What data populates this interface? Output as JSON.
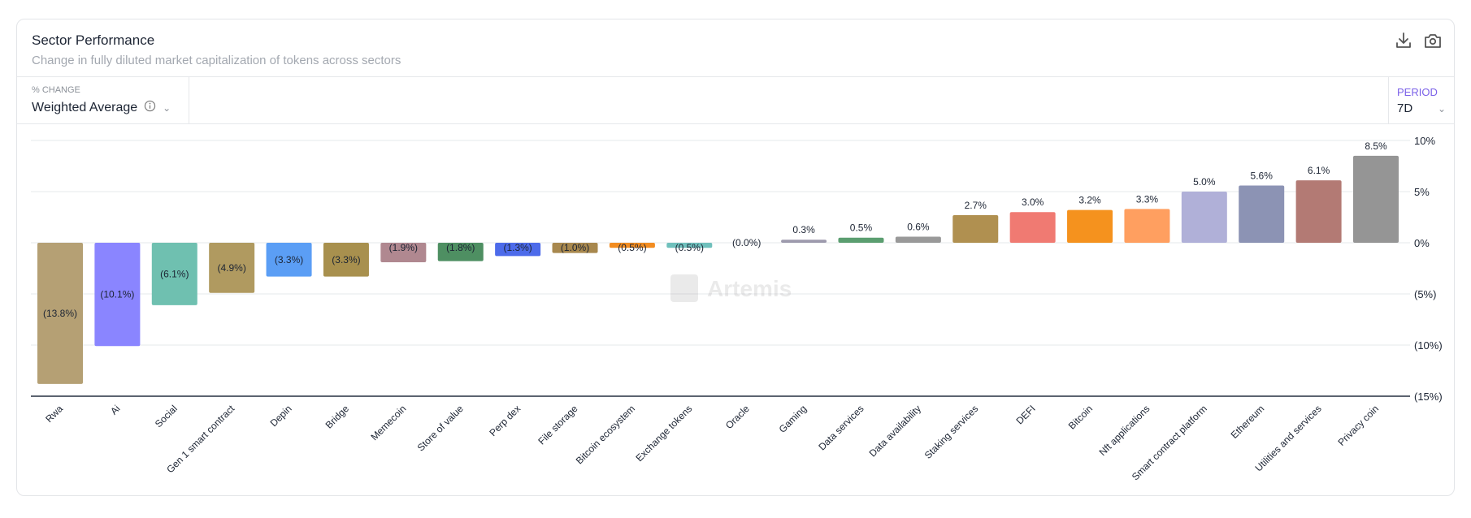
{
  "header": {
    "title": "Sector Performance",
    "subtitle": "Change in fully diluted market capitalization of tokens across sectors"
  },
  "controls": {
    "change": {
      "label": "% CHANGE",
      "value": "Weighted Average"
    },
    "period": {
      "label": "PERIOD",
      "value": "7D"
    }
  },
  "icons": [
    "download-icon",
    "camera-icon",
    "info-icon",
    "chevron-down-icon"
  ],
  "watermark": "Artemis",
  "chart_data": {
    "type": "bar",
    "title": "Sector Performance",
    "ylabel": "% change",
    "ylim": [
      -15,
      10
    ],
    "yticks": [
      10,
      5,
      0,
      -5,
      -10,
      -15
    ],
    "ytick_labels": [
      "10%",
      "5%",
      "0%",
      "(5%)",
      "(10%)",
      "(15%)"
    ],
    "grid": true,
    "categories": [
      "Rwa",
      "Ai",
      "Social",
      "Gen 1 smart contract",
      "Depin",
      "Bridge",
      "Memecoin",
      "Store of value",
      "Perp dex",
      "File storage",
      "Bitcoin ecosystem",
      "Exchange tokens",
      "Oracle",
      "Gaming",
      "Data services",
      "Data availability",
      "Staking services",
      "DEFI",
      "Bitcoin",
      "Nft applications",
      "Smart contract platform",
      "Ethereum",
      "Utilities and services",
      "Privacy coin"
    ],
    "values": [
      -13.8,
      -10.1,
      -6.1,
      -4.9,
      -3.3,
      -3.3,
      -1.9,
      -1.8,
      -1.3,
      -1.0,
      -0.5,
      -0.5,
      0.0,
      0.3,
      0.5,
      0.6,
      2.7,
      3.0,
      3.2,
      3.3,
      5.0,
      5.6,
      6.1,
      8.5
    ],
    "data_labels": [
      "(13.8%)",
      "(10.1%)",
      "(6.1%)",
      "(4.9%)",
      "(3.3%)",
      "(3.3%)",
      "(1.9%)",
      "(1.8%)",
      "(1.3%)",
      "(1.0%)",
      "(0.5%)",
      "(0.5%)",
      "(0.0%)",
      "0.3%",
      "0.5%",
      "0.6%",
      "2.7%",
      "3.0%",
      "3.2%",
      "3.3%",
      "5.0%",
      "5.6%",
      "6.1%",
      "8.5%"
    ],
    "colors": [
      "#b5a074",
      "#8a85ff",
      "#6fc0b0",
      "#b09a60",
      "#5b9ef5",
      "#a8904e",
      "#b08890",
      "#4e8f62",
      "#4d6bea",
      "#a8884e",
      "#f28c20",
      "#6fc0bc",
      "#cccccc",
      "#9d9aad",
      "#5b9e70",
      "#999999",
      "#b09050",
      "#f07a72",
      "#f5921e",
      "#ff9f60",
      "#b0b0d8",
      "#8c93b4",
      "#b37a74",
      "#959595"
    ]
  }
}
